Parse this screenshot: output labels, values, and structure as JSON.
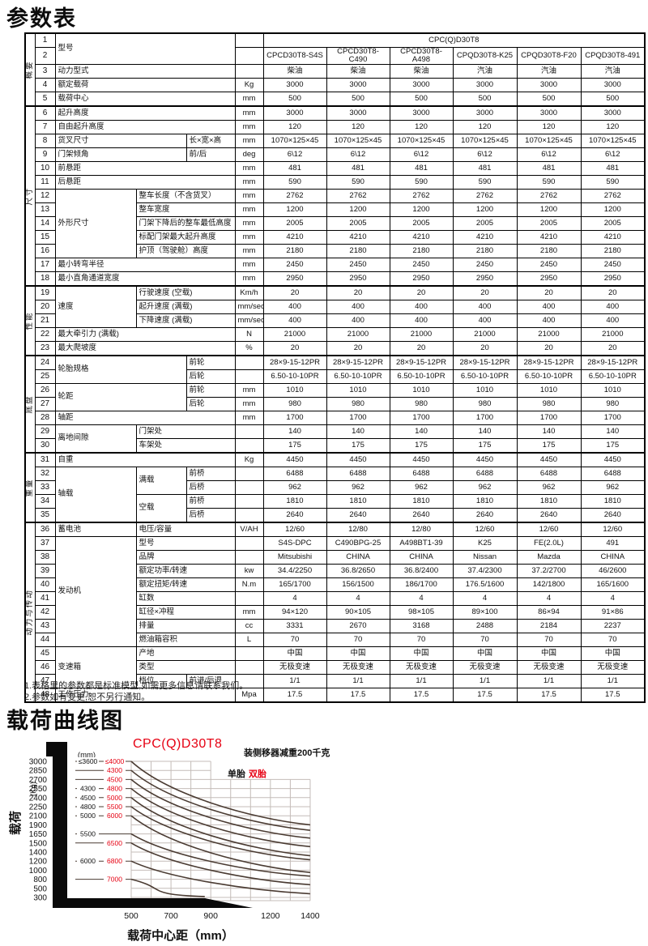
{
  "titles": {
    "spec_table": "参数表",
    "load_curve": "载荷曲线图"
  },
  "notes": [
    "1.表格里的参数都是标准模型,如需更多信息请联系我们。",
    "2.参数如有变更,恕不另行通知。"
  ],
  "table": {
    "series_header": "CPC(Q)D30T8",
    "categories": [
      {
        "label": "概要",
        "rows": 5
      },
      {
        "label": "尺寸",
        "rows": 13
      },
      {
        "label": "性能",
        "rows": 5
      },
      {
        "label": "底盘",
        "rows": 7
      },
      {
        "label": "重量",
        "rows": 5
      },
      {
        "label": "动力与传动",
        "rows": 13
      }
    ],
    "rows": [
      {
        "n": "1",
        "cells": [
          {
            "t": "型号",
            "cs": 3,
            "rs": 2
          }
        ],
        "unit": "",
        "vcs": 6,
        "values": [
          "CPC(Q)D30T8"
        ]
      },
      {
        "n": "2",
        "cells": [],
        "unit": "",
        "values": [
          "CPCD30T8-S4S",
          "CPCD30T8-C490",
          "CPCD30T8-A498",
          "CPQD30T8-K25",
          "CPQD30T8-F20",
          "CPQD30T8-491"
        ]
      },
      {
        "n": "3",
        "cells": [
          {
            "t": "动力型式",
            "cs": 3
          }
        ],
        "unit": "",
        "values": [
          "柴油",
          "柴油",
          "柴油",
          "汽油",
          "汽油",
          "汽油"
        ]
      },
      {
        "n": "4",
        "cells": [
          {
            "t": "额定载荷",
            "cs": 3
          }
        ],
        "unit": "Kg",
        "values": [
          "3000",
          "3000",
          "3000",
          "3000",
          "3000",
          "3000"
        ]
      },
      {
        "n": "5",
        "cells": [
          {
            "t": "载荷中心",
            "cs": 3
          }
        ],
        "unit": "mm",
        "values": [
          "500",
          "500",
          "500",
          "500",
          "500",
          "500"
        ]
      },
      {
        "n": "6",
        "cells": [
          {
            "t": "起升高度",
            "cs": 3
          }
        ],
        "unit": "mm",
        "values": [
          "3000",
          "3000",
          "3000",
          "3000",
          "3000",
          "3000"
        ]
      },
      {
        "n": "7",
        "cells": [
          {
            "t": "自由起升高度",
            "cs": 3
          }
        ],
        "unit": "mm",
        "values": [
          "120",
          "120",
          "120",
          "120",
          "120",
          "120"
        ]
      },
      {
        "n": "8",
        "cells": [
          {
            "t": "货叉尺寸",
            "cs": 2
          },
          {
            "t": "长×宽×高"
          }
        ],
        "unit": "mm",
        "values": [
          "1070×125×45",
          "1070×125×45",
          "1070×125×45",
          "1070×125×45",
          "1070×125×45",
          "1070×125×45"
        ]
      },
      {
        "n": "9",
        "cells": [
          {
            "t": "门架倾角",
            "cs": 2
          },
          {
            "t": "前/后"
          }
        ],
        "unit": "deg",
        "values": [
          "6\\12",
          "6\\12",
          "6\\12",
          "6\\12",
          "6\\12",
          "6\\12"
        ]
      },
      {
        "n": "10",
        "cells": [
          {
            "t": "前悬距",
            "cs": 3
          }
        ],
        "unit": "mm",
        "values": [
          "481",
          "481",
          "481",
          "481",
          "481",
          "481"
        ]
      },
      {
        "n": "11",
        "cells": [
          {
            "t": "后悬距",
            "cs": 3
          }
        ],
        "unit": "mm",
        "values": [
          "590",
          "590",
          "590",
          "590",
          "590",
          "590"
        ]
      },
      {
        "n": "12",
        "cells": [
          {
            "t": "外形尺寸",
            "rs": 5
          },
          {
            "t": "整车长度（不含货叉）",
            "cs": 2
          }
        ],
        "unit": "mm",
        "values": [
          "2762",
          "2762",
          "2762",
          "2762",
          "2762",
          "2762"
        ]
      },
      {
        "n": "13",
        "cells": [
          {
            "t": "整车宽度",
            "cs": 2
          }
        ],
        "unit": "mm",
        "values": [
          "1200",
          "1200",
          "1200",
          "1200",
          "1200",
          "1200"
        ]
      },
      {
        "n": "14",
        "cells": [
          {
            "t": "门架下降后的整车最低高度",
            "cs": 2
          }
        ],
        "unit": "mm",
        "values": [
          "2005",
          "2005",
          "2005",
          "2005",
          "2005",
          "2005"
        ]
      },
      {
        "n": "15",
        "cells": [
          {
            "t": "标配门架最大起升高度",
            "cs": 2
          }
        ],
        "unit": "mm",
        "values": [
          "4210",
          "4210",
          "4210",
          "4210",
          "4210",
          "4210"
        ]
      },
      {
        "n": "16",
        "cells": [
          {
            "t": "护顶（驾驶舱）高度",
            "cs": 2
          }
        ],
        "unit": "mm",
        "values": [
          "2180",
          "2180",
          "2180",
          "2180",
          "2180",
          "2180"
        ]
      },
      {
        "n": "17",
        "cells": [
          {
            "t": "最小转弯半径",
            "cs": 3
          }
        ],
        "unit": "mm",
        "values": [
          "2450",
          "2450",
          "2450",
          "2450",
          "2450",
          "2450"
        ]
      },
      {
        "n": "18",
        "cells": [
          {
            "t": "最小直角通道宽度",
            "cs": 3
          }
        ],
        "unit": "mm",
        "values": [
          "2950",
          "2950",
          "2950",
          "2950",
          "2950",
          "2950"
        ]
      },
      {
        "n": "19",
        "cells": [
          {
            "t": "速度",
            "rs": 3
          },
          {
            "t": "行驶速度 (空载)",
            "cs": 2
          }
        ],
        "unit": "Km/h",
        "values": [
          "20",
          "20",
          "20",
          "20",
          "20",
          "20"
        ]
      },
      {
        "n": "20",
        "cells": [
          {
            "t": "起升速度 (满载)",
            "cs": 2
          }
        ],
        "unit": "mm/sec",
        "values": [
          "400",
          "400",
          "400",
          "400",
          "400",
          "400"
        ]
      },
      {
        "n": "21",
        "cells": [
          {
            "t": "下降速度 (满载)",
            "cs": 2
          }
        ],
        "unit": "mm/sec",
        "values": [
          "400",
          "400",
          "400",
          "400",
          "400",
          "400"
        ]
      },
      {
        "n": "22",
        "cells": [
          {
            "t": "最大牵引力 (满载)",
            "cs": 3
          }
        ],
        "unit": "N",
        "values": [
          "21000",
          "21000",
          "21000",
          "21000",
          "21000",
          "21000"
        ]
      },
      {
        "n": "23",
        "cells": [
          {
            "t": "最大爬坡度",
            "cs": 3
          }
        ],
        "unit": "%",
        "values": [
          "20",
          "20",
          "20",
          "20",
          "20",
          "20"
        ]
      },
      {
        "n": "24",
        "cells": [
          {
            "t": "轮胎规格",
            "rs": 2,
            "cs": 2
          },
          {
            "t": "前轮"
          }
        ],
        "unit": "",
        "values": [
          "28×9-15-12PR",
          "28×9-15-12PR",
          "28×9-15-12PR",
          "28×9-15-12PR",
          "28×9-15-12PR",
          "28×9-15-12PR"
        ]
      },
      {
        "n": "25",
        "cells": [
          {
            "t": "后轮"
          }
        ],
        "unit": "",
        "values": [
          "6.50-10-10PR",
          "6.50-10-10PR",
          "6.50-10-10PR",
          "6.50-10-10PR",
          "6.50-10-10PR",
          "6.50-10-10PR"
        ]
      },
      {
        "n": "26",
        "cells": [
          {
            "t": "轮距",
            "rs": 2,
            "cs": 2
          },
          {
            "t": "前轮"
          }
        ],
        "unit": "mm",
        "values": [
          "1010",
          "1010",
          "1010",
          "1010",
          "1010",
          "1010"
        ]
      },
      {
        "n": "27",
        "cells": [
          {
            "t": "后轮"
          }
        ],
        "unit": "mm",
        "values": [
          "980",
          "980",
          "980",
          "980",
          "980",
          "980"
        ]
      },
      {
        "n": "28",
        "cells": [
          {
            "t": "轴距",
            "cs": 3
          }
        ],
        "unit": "mm",
        "values": [
          "1700",
          "1700",
          "1700",
          "1700",
          "1700",
          "1700"
        ]
      },
      {
        "n": "29",
        "cells": [
          {
            "t": "离地间隙",
            "rs": 2
          },
          {
            "t": "门架处",
            "cs": 2
          }
        ],
        "unit": "",
        "values": [
          "140",
          "140",
          "140",
          "140",
          "140",
          "140"
        ]
      },
      {
        "n": "30",
        "cells": [
          {
            "t": "车架处",
            "cs": 2
          }
        ],
        "unit": "",
        "values": [
          "175",
          "175",
          "175",
          "175",
          "175",
          "175"
        ]
      },
      {
        "n": "31",
        "cells": [
          {
            "t": "自重",
            "cs": 3
          }
        ],
        "unit": "Kg",
        "values": [
          "4450",
          "4450",
          "4450",
          "4450",
          "4450",
          "4450"
        ]
      },
      {
        "n": "32",
        "cells": [
          {
            "t": "轴载",
            "rs": 4
          },
          {
            "t": "满载",
            "rs": 2
          },
          {
            "t": "前桥"
          }
        ],
        "unit": "",
        "values": [
          "6488",
          "6488",
          "6488",
          "6488",
          "6488",
          "6488"
        ]
      },
      {
        "n": "33",
        "cells": [
          {
            "t": "后桥"
          }
        ],
        "unit": "",
        "values": [
          "962",
          "962",
          "962",
          "962",
          "962",
          "962"
        ]
      },
      {
        "n": "34",
        "cells": [
          {
            "t": "空载",
            "rs": 2
          },
          {
            "t": "前桥"
          }
        ],
        "unit": "",
        "values": [
          "1810",
          "1810",
          "1810",
          "1810",
          "1810",
          "1810"
        ]
      },
      {
        "n": "35",
        "cells": [
          {
            "t": "后桥"
          }
        ],
        "unit": "",
        "values": [
          "2640",
          "2640",
          "2640",
          "2640",
          "2640",
          "2640"
        ]
      },
      {
        "n": "36",
        "cells": [
          {
            "t": "蓄电池"
          },
          {
            "t": "电压/容量",
            "cs": 2
          }
        ],
        "unit": "V/AH",
        "values": [
          "12/60",
          "12/80",
          "12/80",
          "12/60",
          "12/60",
          "12/60"
        ]
      },
      {
        "n": "37",
        "cells": [
          {
            "t": "发动机",
            "rs": 8
          },
          {
            "t": "型号",
            "cs": 2
          }
        ],
        "unit": "",
        "values": [
          "S4S-DPC",
          "C490BPG-25",
          "A498BT1-39",
          "K25",
          "FE(2.0L)",
          "491"
        ]
      },
      {
        "n": "38",
        "cells": [
          {
            "t": "品牌",
            "cs": 2
          }
        ],
        "unit": "",
        "values": [
          "Mitsubishi",
          "CHINA",
          "CHINA",
          "Nissan",
          "Mazda",
          "CHINA"
        ]
      },
      {
        "n": "39",
        "cells": [
          {
            "t": "额定功率/转速",
            "cs": 2
          }
        ],
        "unit": "kw",
        "values": [
          "34.4/2250",
          "36.8/2650",
          "36.8/2400",
          "37.4/2300",
          "37.2/2700",
          "46/2600"
        ]
      },
      {
        "n": "40",
        "cells": [
          {
            "t": "额定扭矩/转速",
            "cs": 2
          }
        ],
        "unit": "N.m",
        "values": [
          "165/1700",
          "156/1500",
          "186/1700",
          "176.5/1600",
          "142/1800",
          "165/1600"
        ]
      },
      {
        "n": "41",
        "cells": [
          {
            "t": "缸数",
            "cs": 2
          }
        ],
        "unit": "",
        "values": [
          "4",
          "4",
          "4",
          "4",
          "4",
          "4"
        ]
      },
      {
        "n": "42",
        "cells": [
          {
            "t": "缸径×冲程",
            "cs": 2
          }
        ],
        "unit": "mm",
        "values": [
          "94×120",
          "90×105",
          "98×105",
          "89×100",
          "86×94",
          "91×86"
        ]
      },
      {
        "n": "43",
        "cells": [
          {
            "t": "排量",
            "cs": 2
          }
        ],
        "unit": "cc",
        "values": [
          "3331",
          "2670",
          "3168",
          "2488",
          "2184",
          "2237"
        ]
      },
      {
        "n": "44",
        "cells": [
          {
            "t": "燃油箱容积",
            "cs": 2
          }
        ],
        "unit": "L",
        "values": [
          "70",
          "70",
          "70",
          "70",
          "70",
          "70"
        ]
      },
      {
        "n": "45",
        "cells": [
          {
            "t": "变速箱",
            "rs": 3
          },
          {
            "t": "产地",
            "cs": 2
          }
        ],
        "unit": "",
        "values": [
          "中国",
          "中国",
          "中国",
          "中国",
          "中国",
          "中国"
        ]
      },
      {
        "n": "46",
        "cells": [
          {
            "t": "类型",
            "cs": 2
          }
        ],
        "unit": "",
        "values": [
          "无极变速",
          "无极变速",
          "无极变速",
          "无极变速",
          "无极变速",
          "无极变速"
        ]
      },
      {
        "n": "47",
        "cells": [
          {
            "t": "档位"
          },
          {
            "t": "前进/后退"
          }
        ],
        "unit": "",
        "values": [
          "1/1",
          "1/1",
          "1/1",
          "1/1",
          "1/1",
          "1/1"
        ]
      },
      {
        "n": "48",
        "cells": [
          {
            "t": "工作压力",
            "cs": 3
          }
        ],
        "unit": "Mpa",
        "values": [
          "17.5",
          "17.5",
          "17.5",
          "17.5",
          "17.5",
          "17.5"
        ]
      }
    ]
  },
  "chart_data": {
    "type": "line",
    "title": "CPC(Q)D30T8",
    "note": "装侧移器减重200千克",
    "legend": [
      {
        "label": "单胎",
        "color": "#111111"
      },
      {
        "label": "双胎",
        "color": "#e60012"
      }
    ],
    "xlabel": "载荷中心距（mm）",
    "ylabel": "载荷",
    "y_unit": "(Kg)",
    "mast_unit": "(mm)",
    "x_ticks": [
      500,
      700,
      900,
      1200,
      1400
    ],
    "x_range": [
      500,
      1400
    ],
    "y_ticks": [
      3000,
      2850,
      2700,
      2550,
      2400,
      2250,
      2100,
      1900,
      1650,
      1500,
      1400,
      1200,
      1000,
      800,
      500,
      300
    ],
    "curves": [
      {
        "load_at_500": 3000,
        "single": "≤3600",
        "dual": "≤4000",
        "load_at_end": 1900
      },
      {
        "load_at_500": 2850,
        "single": "",
        "dual": "4300",
        "load_at_end": 1750
      },
      {
        "load_at_500": 2700,
        "single": "",
        "dual": "4500",
        "load_at_end": 1580
      },
      {
        "load_at_500": 2550,
        "single": "4300",
        "dual": "4800",
        "load_at_end": 1460
      },
      {
        "load_at_500": 2400,
        "single": "4500",
        "dual": "5000",
        "load_at_end": 1320
      },
      {
        "load_at_500": 2250,
        "single": "4800",
        "dual": "5500",
        "load_at_end": 1230
      },
      {
        "load_at_500": 2100,
        "single": "5000",
        "dual": "6000",
        "load_at_end": 950
      },
      {
        "load_at_500": 1650,
        "single": "5500",
        "dual": "",
        "load_at_end": 870
      },
      {
        "load_at_500": 1500,
        "single": "",
        "dual": "6500",
        "load_at_end": 620
      },
      {
        "load_at_500": 1200,
        "single": "6000",
        "dual": "6800",
        "load_at_end": 380
      },
      {
        "load_at_500": 800,
        "single": "",
        "dual": "7000",
        "load_at_end": 320,
        "end_x": 870
      }
    ],
    "colors": {
      "accent_red": "#e60012",
      "curve": "#4a3b32",
      "grid": "#c4bcb8",
      "text": "#111111"
    }
  }
}
